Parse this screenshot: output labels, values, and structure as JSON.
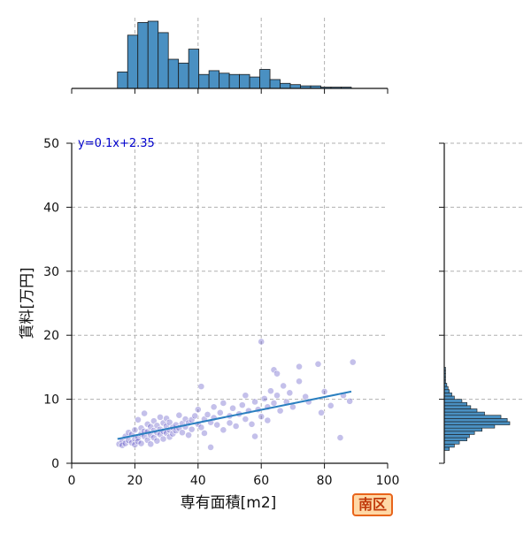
{
  "badge": {
    "text": "南区"
  },
  "colors": {
    "hist_fill": "#4a90c2",
    "hist_edge": "#1a1a1a",
    "point": "#3a2fb8",
    "fit_line": "#2a7fc0",
    "equation_text": "#0000cc",
    "badge_border": "#e8641b",
    "badge_fill": "#ffd8a6",
    "badge_text": "#c0390b",
    "grid": "#b0b0b0"
  },
  "chart_data": [
    {
      "type": "scatter",
      "title": "",
      "xlabel": "専有面積[m2]",
      "ylabel": "賃料[万円]",
      "xlim": [
        0,
        100
      ],
      "ylim": [
        0,
        50
      ],
      "xticks": [
        "0",
        "20",
        "40",
        "60",
        "80",
        "100"
      ],
      "yticks": [
        "0",
        "10",
        "20",
        "30",
        "40",
        "50"
      ],
      "grid": true,
      "annotation": "y=0.1x+2.35",
      "fit_line": {
        "slope": 0.1,
        "intercept": 2.35,
        "x_range": [
          14.5,
          88.5
        ]
      },
      "points": [
        [
          15,
          3.0
        ],
        [
          16,
          3.5
        ],
        [
          16,
          2.8
        ],
        [
          17,
          4.2
        ],
        [
          17,
          3.1
        ],
        [
          18,
          3.6
        ],
        [
          18,
          4.8
        ],
        [
          19,
          3.2
        ],
        [
          19,
          4.5
        ],
        [
          20,
          3.8
        ],
        [
          20,
          5.2
        ],
        [
          20,
          2.9
        ],
        [
          21,
          4.0
        ],
        [
          21,
          6.8
        ],
        [
          21,
          3.4
        ],
        [
          22,
          4.6
        ],
        [
          22,
          5.5
        ],
        [
          22,
          3.1
        ],
        [
          23,
          4.2
        ],
        [
          23,
          7.8
        ],
        [
          23,
          5.0
        ],
        [
          24,
          3.6
        ],
        [
          24,
          4.9
        ],
        [
          24,
          6.1
        ],
        [
          25,
          4.4
        ],
        [
          25,
          5.7
        ],
        [
          25,
          3.0
        ],
        [
          26,
          5.1
        ],
        [
          26,
          6.6
        ],
        [
          26,
          4.0
        ],
        [
          27,
          4.8
        ],
        [
          27,
          5.9
        ],
        [
          27,
          3.5
        ],
        [
          28,
          5.3
        ],
        [
          28,
          7.2
        ],
        [
          28,
          4.5
        ],
        [
          29,
          5.0
        ],
        [
          29,
          6.3
        ],
        [
          29,
          3.8
        ],
        [
          30,
          4.7
        ],
        [
          30,
          5.8
        ],
        [
          30,
          7.0
        ],
        [
          31,
          5.2
        ],
        [
          31,
          6.4
        ],
        [
          31,
          4.1
        ],
        [
          32,
          5.6
        ],
        [
          32,
          4.6
        ],
        [
          33,
          6.0
        ],
        [
          33,
          5.1
        ],
        [
          34,
          5.5
        ],
        [
          34,
          7.5
        ],
        [
          35,
          6.2
        ],
        [
          35,
          4.8
        ],
        [
          36,
          5.7
        ],
        [
          36,
          6.9
        ],
        [
          37,
          6.3
        ],
        [
          37,
          4.4
        ],
        [
          38,
          6.8
        ],
        [
          38,
          5.3
        ],
        [
          39,
          7.4
        ],
        [
          40,
          6.1
        ],
        [
          40,
          8.4
        ],
        [
          41,
          5.6
        ],
        [
          41,
          12.0
        ],
        [
          42,
          6.9
        ],
        [
          42,
          4.7
        ],
        [
          43,
          7.6
        ],
        [
          44,
          6.4
        ],
        [
          44,
          2.5
        ],
        [
          45,
          7.1
        ],
        [
          45,
          8.8
        ],
        [
          46,
          6.0
        ],
        [
          47,
          7.9
        ],
        [
          48,
          5.2
        ],
        [
          48,
          9.4
        ],
        [
          50,
          7.4
        ],
        [
          50,
          6.3
        ],
        [
          51,
          8.6
        ],
        [
          52,
          5.8
        ],
        [
          53,
          7.7
        ],
        [
          54,
          9.1
        ],
        [
          55,
          6.9
        ],
        [
          55,
          10.6
        ],
        [
          56,
          8.2
        ],
        [
          57,
          6.1
        ],
        [
          58,
          9.6
        ],
        [
          58,
          4.2
        ],
        [
          59,
          8.4
        ],
        [
          60,
          19.0
        ],
        [
          60,
          7.3
        ],
        [
          61,
          10.1
        ],
        [
          62,
          8.8
        ],
        [
          62,
          6.7
        ],
        [
          63,
          11.3
        ],
        [
          64,
          9.4
        ],
        [
          64,
          14.6
        ],
        [
          65,
          10.6
        ],
        [
          65,
          14.0
        ],
        [
          66,
          8.2
        ],
        [
          67,
          12.1
        ],
        [
          68,
          9.6
        ],
        [
          69,
          11.0
        ],
        [
          70,
          8.8
        ],
        [
          72,
          12.8
        ],
        [
          72,
          15.1
        ],
        [
          74,
          10.4
        ],
        [
          75,
          9.6
        ],
        [
          78,
          15.5
        ],
        [
          79,
          7.9
        ],
        [
          80,
          11.2
        ],
        [
          82,
          9.0
        ],
        [
          85,
          4.0
        ],
        [
          86,
          10.6
        ],
        [
          88,
          9.7
        ],
        [
          89,
          15.8
        ]
      ]
    },
    {
      "type": "bar",
      "title": "",
      "orientation": "vertical",
      "axis": "x",
      "bin_edges": [
        14.5,
        88.5
      ],
      "values": [
        13,
        42,
        52,
        53,
        44,
        23,
        20,
        31,
        11,
        14,
        12,
        11,
        11,
        9,
        15,
        7,
        4,
        3,
        2,
        2,
        1,
        1,
        1
      ]
    },
    {
      "type": "bar",
      "title": "",
      "orientation": "horizontal",
      "axis": "y",
      "bin_edges": [
        2.0,
        15.0
      ],
      "values": [
        4,
        8,
        12,
        18,
        20,
        24,
        30,
        40,
        52,
        50,
        45,
        32,
        26,
        21,
        18,
        14,
        8,
        6,
        4,
        3,
        2,
        1,
        1,
        1,
        1,
        1
      ]
    }
  ]
}
